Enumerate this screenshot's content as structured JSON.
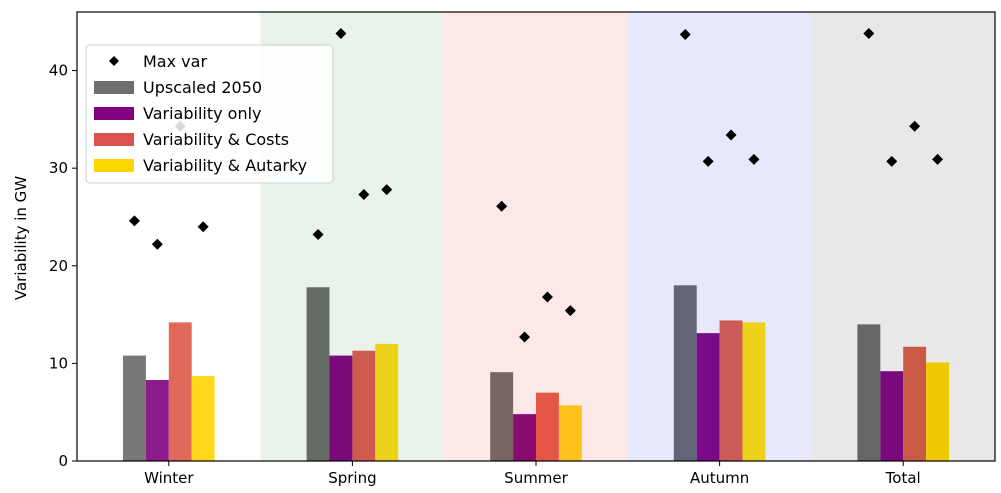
{
  "chart_data": {
    "type": "bar",
    "categories": [
      "Winter",
      "Spring",
      "Summer",
      "Autumn",
      "Total"
    ],
    "ylabel": "Variability in GW",
    "xlabel": "",
    "ylim": [
      0,
      46
    ],
    "yticks": [
      0,
      10,
      20,
      30,
      40
    ],
    "background_bands": [
      "#ffffff",
      "#e9f3e9",
      "#fde8e8",
      "#e8e8fd",
      "#e8e8e8"
    ],
    "series": [
      {
        "name": "Upscaled 2050",
        "color": "#6e6e6e",
        "values": [
          10.8,
          17.8,
          9.1,
          18.0,
          14.0
        ],
        "band_colors": [
          "#777777",
          "#646b64",
          "#796464",
          "#646478",
          "#666666"
        ]
      },
      {
        "name": "Variability only",
        "color": "#800080",
        "values": [
          8.3,
          10.8,
          4.8,
          13.1,
          9.2
        ],
        "band_colors": [
          "#8b1a8b",
          "#7a0a7a",
          "#8a0a70",
          "#7a0a8a",
          "#7a0a7a"
        ]
      },
      {
        "name": "Variability & Costs",
        "color": "#d9534f",
        "values": [
          14.2,
          11.3,
          7.0,
          14.4,
          11.7
        ],
        "band_colors": [
          "#e06a5a",
          "#cf5a4f",
          "#e45646",
          "#cb5a58",
          "#cb5a45"
        ]
      },
      {
        "name": "Variability & Autarky",
        "color": "#ffd700",
        "values": [
          8.7,
          12.0,
          5.7,
          14.2,
          10.1
        ],
        "band_colors": [
          "#ffd81a",
          "#ecd21a",
          "#ffc21a",
          "#ecd21a",
          "#eec800"
        ]
      }
    ],
    "max_var": {
      "name": "Max var",
      "color": "#000000",
      "marker": "diamond",
      "points": [
        [
          24.6,
          22.2,
          34.3,
          24.0
        ],
        [
          23.2,
          43.8,
          27.3,
          27.8
        ],
        [
          26.1,
          12.7,
          16.8,
          15.4
        ],
        [
          43.7,
          30.7,
          33.4,
          30.9
        ],
        [
          43.8,
          30.7,
          34.3,
          30.9
        ]
      ]
    },
    "legend": {
      "position": "upper-left",
      "entries": [
        "Max var",
        "Upscaled 2050",
        "Variability only",
        "Variability & Costs",
        "Variability & Autarky"
      ]
    },
    "grid": false
  }
}
